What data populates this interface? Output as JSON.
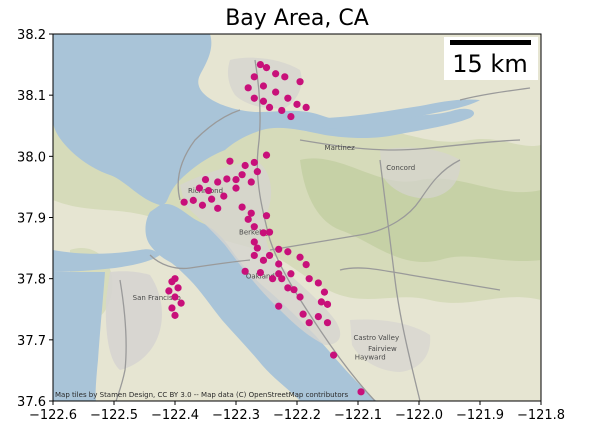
{
  "title": "Bay Area, CA",
  "attribution": "Map tiles by Stamen Design, CC BY 3.0 -- Map data (C) OpenStreetMap contributors",
  "scalebar": {
    "label": "15 km"
  },
  "place_labels": [
    {
      "text": "Concord",
      "lon": -122.03,
      "lat": 37.978
    },
    {
      "text": "Martinez",
      "lon": -122.13,
      "lat": 38.01
    },
    {
      "text": "Hayward",
      "lon": -122.08,
      "lat": 37.668
    },
    {
      "text": "Fairview",
      "lon": -122.06,
      "lat": 37.682
    },
    {
      "text": "Castro Valley",
      "lon": -122.07,
      "lat": 37.7
    },
    {
      "text": "San Francisco",
      "lon": -122.43,
      "lat": 37.765
    },
    {
      "text": "Oakland",
      "lon": -122.26,
      "lat": 37.8
    },
    {
      "text": "Richmond",
      "lon": -122.35,
      "lat": 37.94
    },
    {
      "text": "Berkeley",
      "lon": -122.27,
      "lat": 37.872
    }
  ],
  "colors": {
    "water": "#a9c4d8",
    "land": "#e6e5d2",
    "hills": "#c8d4a6",
    "urban": "#d6d4d0",
    "marker": "#c8107a",
    "road": "#9a9a9a"
  },
  "chart_data": {
    "type": "scatter",
    "title": "Bay Area, CA",
    "xlabel": "",
    "ylabel": "",
    "xlim": [
      -122.6,
      -121.8
    ],
    "ylim": [
      37.6,
      38.2
    ],
    "xticks": [
      -122.6,
      -122.5,
      -122.4,
      -122.3,
      -122.2,
      -122.1,
      -122.0,
      -121.9,
      -121.8
    ],
    "xtick_labels": [
      "−122.6",
      "−122.5",
      "−122.4",
      "−122.3",
      "−122.2",
      "−122.1",
      "−122.0",
      "−121.9",
      "−121.8"
    ],
    "yticks": [
      37.6,
      37.7,
      37.8,
      37.9,
      38.0,
      38.1,
      38.2
    ],
    "ytick_labels": [
      "37.6",
      "37.7",
      "37.8",
      "37.9",
      "38.0",
      "38.1",
      "38.2"
    ],
    "grid": false,
    "marker_color": "#c8107a",
    "points": [
      {
        "lon": -122.26,
        "lat": 38.15
      },
      {
        "lon": -122.25,
        "lat": 38.145
      },
      {
        "lon": -122.235,
        "lat": 38.135
      },
      {
        "lon": -122.27,
        "lat": 38.13
      },
      {
        "lon": -122.255,
        "lat": 38.115
      },
      {
        "lon": -122.28,
        "lat": 38.112
      },
      {
        "lon": -122.22,
        "lat": 38.13
      },
      {
        "lon": -122.195,
        "lat": 38.122
      },
      {
        "lon": -122.235,
        "lat": 38.105
      },
      {
        "lon": -122.27,
        "lat": 38.095
      },
      {
        "lon": -122.255,
        "lat": 38.09
      },
      {
        "lon": -122.215,
        "lat": 38.095
      },
      {
        "lon": -122.245,
        "lat": 38.08
      },
      {
        "lon": -122.2,
        "lat": 38.085
      },
      {
        "lon": -122.225,
        "lat": 38.075
      },
      {
        "lon": -122.21,
        "lat": 38.065
      },
      {
        "lon": -122.185,
        "lat": 38.08
      },
      {
        "lon": -122.31,
        "lat": 37.992
      },
      {
        "lon": -122.27,
        "lat": 37.99
      },
      {
        "lon": -122.25,
        "lat": 38.002
      },
      {
        "lon": -122.285,
        "lat": 37.985
      },
      {
        "lon": -122.265,
        "lat": 37.975
      },
      {
        "lon": -122.29,
        "lat": 37.97
      },
      {
        "lon": -122.3,
        "lat": 37.962
      },
      {
        "lon": -122.315,
        "lat": 37.963
      },
      {
        "lon": -122.275,
        "lat": 37.958
      },
      {
        "lon": -122.35,
        "lat": 37.962
      },
      {
        "lon": -122.33,
        "lat": 37.958
      },
      {
        "lon": -122.36,
        "lat": 37.948
      },
      {
        "lon": -122.345,
        "lat": 37.944
      },
      {
        "lon": -122.3,
        "lat": 37.948
      },
      {
        "lon": -122.32,
        "lat": 37.935
      },
      {
        "lon": -122.34,
        "lat": 37.93
      },
      {
        "lon": -122.37,
        "lat": 37.928
      },
      {
        "lon": -122.385,
        "lat": 37.925
      },
      {
        "lon": -122.355,
        "lat": 37.92
      },
      {
        "lon": -122.33,
        "lat": 37.915
      },
      {
        "lon": -122.29,
        "lat": 37.917
      },
      {
        "lon": -122.275,
        "lat": 37.907
      },
      {
        "lon": -122.25,
        "lat": 37.903
      },
      {
        "lon": -122.28,
        "lat": 37.897
      },
      {
        "lon": -122.27,
        "lat": 37.885
      },
      {
        "lon": -122.255,
        "lat": 37.875
      },
      {
        "lon": -122.245,
        "lat": 37.876
      },
      {
        "lon": -122.27,
        "lat": 37.86
      },
      {
        "lon": -122.265,
        "lat": 37.85
      },
      {
        "lon": -122.23,
        "lat": 37.848
      },
      {
        "lon": -122.215,
        "lat": 37.844
      },
      {
        "lon": -122.27,
        "lat": 37.838
      },
      {
        "lon": -122.245,
        "lat": 37.838
      },
      {
        "lon": -122.255,
        "lat": 37.83
      },
      {
        "lon": -122.195,
        "lat": 37.835
      },
      {
        "lon": -122.23,
        "lat": 37.824
      },
      {
        "lon": -122.185,
        "lat": 37.823
      },
      {
        "lon": -122.285,
        "lat": 37.812
      },
      {
        "lon": -122.26,
        "lat": 37.81
      },
      {
        "lon": -122.23,
        "lat": 37.808
      },
      {
        "lon": -122.21,
        "lat": 37.808
      },
      {
        "lon": -122.18,
        "lat": 37.8
      },
      {
        "lon": -122.24,
        "lat": 37.8
      },
      {
        "lon": -122.225,
        "lat": 37.8
      },
      {
        "lon": -122.215,
        "lat": 37.785
      },
      {
        "lon": -122.205,
        "lat": 37.782
      },
      {
        "lon": -122.165,
        "lat": 37.793
      },
      {
        "lon": -122.155,
        "lat": 37.778
      },
      {
        "lon": -122.195,
        "lat": 37.77
      },
      {
        "lon": -122.16,
        "lat": 37.762
      },
      {
        "lon": -122.15,
        "lat": 37.758
      },
      {
        "lon": -122.23,
        "lat": 37.755
      },
      {
        "lon": -122.19,
        "lat": 37.742
      },
      {
        "lon": -122.165,
        "lat": 37.738
      },
      {
        "lon": -122.15,
        "lat": 37.728
      },
      {
        "lon": -122.18,
        "lat": 37.728
      },
      {
        "lon": -122.14,
        "lat": 37.675
      },
      {
        "lon": -122.095,
        "lat": 37.615
      },
      {
        "lon": -122.4,
        "lat": 37.8
      },
      {
        "lon": -122.405,
        "lat": 37.795
      },
      {
        "lon": -122.395,
        "lat": 37.785
      },
      {
        "lon": -122.41,
        "lat": 37.78
      },
      {
        "lon": -122.4,
        "lat": 37.77
      },
      {
        "lon": -122.39,
        "lat": 37.76
      },
      {
        "lon": -122.405,
        "lat": 37.752
      },
      {
        "lon": -122.4,
        "lat": 37.74
      }
    ]
  }
}
